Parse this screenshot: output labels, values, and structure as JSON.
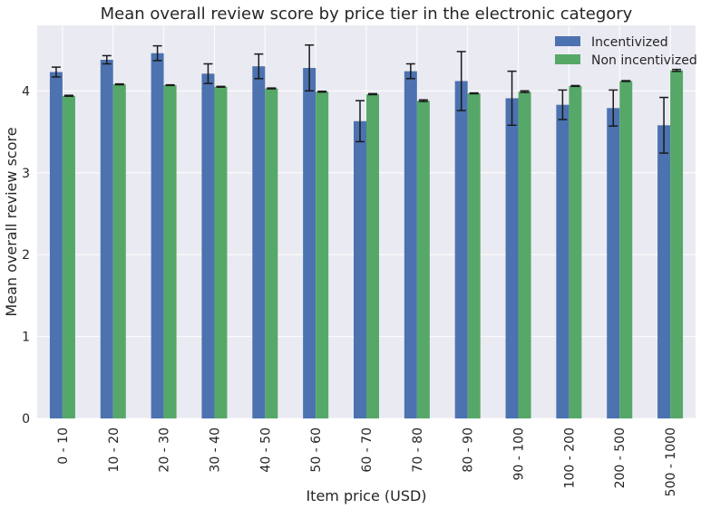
{
  "chart_data": {
    "type": "bar",
    "title": "Mean overall review score by price tier in the electronic category",
    "xlabel": "Item price (USD)",
    "ylabel": "Mean overall review score",
    "categories": [
      "0 - 10",
      "10 - 20",
      "20 - 30",
      "30 - 40",
      "40 - 50",
      "50 - 60",
      "60 - 70",
      "70 - 80",
      "80 - 90",
      "90 - 100",
      "100 - 200",
      "200 - 500",
      "500 - 1000"
    ],
    "yticks": [
      "0",
      "1",
      "2",
      "3",
      "4"
    ],
    "ylim": [
      0,
      4.8
    ],
    "grid": true,
    "legend_position": "top-right",
    "series": [
      {
        "name": "Incentivized",
        "color": "#4c72b0",
        "values": [
          4.23,
          4.38,
          4.46,
          4.21,
          4.3,
          4.28,
          3.63,
          4.24,
          4.12,
          3.91,
          3.83,
          3.79,
          3.58
        ],
        "errors": [
          0.06,
          0.05,
          0.09,
          0.12,
          0.15,
          0.28,
          0.25,
          0.09,
          0.36,
          0.33,
          0.18,
          0.22,
          0.34
        ]
      },
      {
        "name": "Non incentivized",
        "color": "#55a868",
        "values": [
          3.94,
          4.08,
          4.07,
          4.05,
          4.03,
          3.99,
          3.96,
          3.88,
          3.97,
          3.99,
          4.06,
          4.12,
          4.25
        ],
        "errors": [
          0.006,
          0.005,
          0.004,
          0.005,
          0.005,
          0.005,
          0.006,
          0.01,
          0.005,
          0.01,
          0.005,
          0.005,
          0.012
        ]
      }
    ]
  }
}
